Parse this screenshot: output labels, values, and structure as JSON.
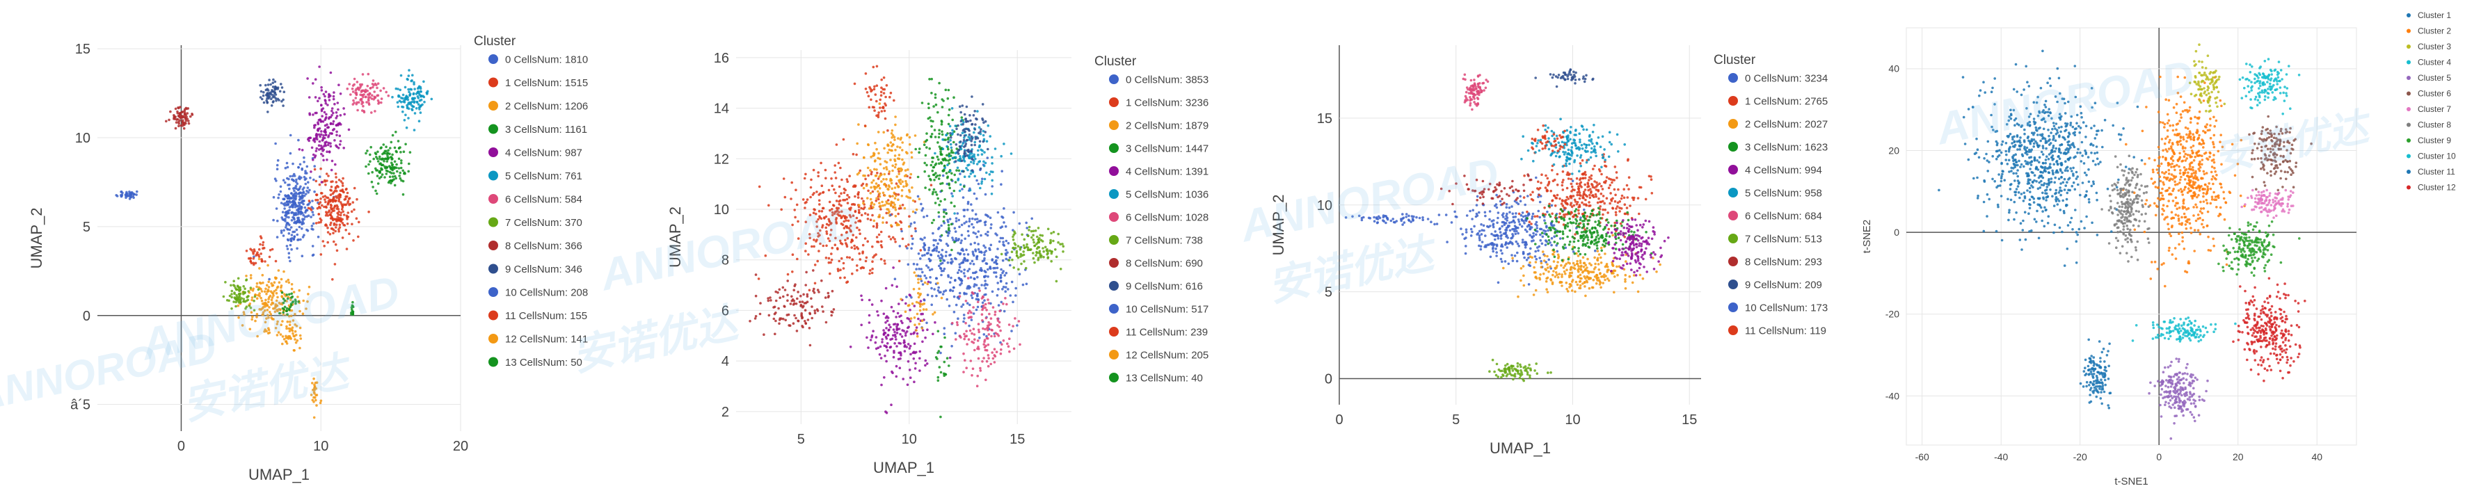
{
  "watermark": {
    "brand": "ANNOROAD",
    "cn": "安诺优达"
  },
  "chart_data": [
    {
      "type": "scatter",
      "xlabel": "UMAP_1",
      "ylabel": "UMAP_2",
      "xlim": [
        -6,
        20
      ],
      "ylim": [
        -6.5,
        15.2
      ],
      "xticks": [
        0,
        10,
        20
      ],
      "yticks": [
        -5,
        0,
        5,
        10,
        15
      ],
      "ytick_labels": [
        "â´5",
        "0",
        "5",
        "10",
        "15"
      ],
      "grid": true,
      "legend_placement": "right",
      "legend_title": "Cluster",
      "legend": [
        "0 CellsNum: 1810",
        "1 CellsNum: 1515",
        "2 CellsNum: 1206",
        "3 CellsNum: 1161",
        "4 CellsNum: 987",
        "5 CellsNum: 761",
        "6 CellsNum: 584",
        "7 CellsNum: 370",
        "8 CellsNum: 366",
        "9 CellsNum: 346",
        "10 CellsNum: 208",
        "11 CellsNum: 155",
        "12 CellsNum: 141",
        "13 CellsNum: 50"
      ],
      "colors": [
        "#3d63c9",
        "#dc3b1c",
        "#f39914",
        "#14931f",
        "#910f9a",
        "#0b97c2",
        "#de4879",
        "#66a815",
        "#b02d2d",
        "#2f4f8e",
        "#3d63c9",
        "#dc3b1c",
        "#f39914",
        "#14931f"
      ]
    },
    {
      "type": "scatter",
      "xlabel": "UMAP_1",
      "ylabel": "UMAP_2",
      "xlim": [
        2,
        17.5
      ],
      "ylim": [
        1.5,
        16.3
      ],
      "xticks": [
        5,
        10,
        15
      ],
      "yticks": [
        2,
        4,
        6,
        8,
        10,
        12,
        14,
        16
      ],
      "grid": true,
      "legend_placement": "right",
      "legend_title": "Cluster",
      "legend": [
        "0 CellsNum: 3853",
        "1 CellsNum: 3236",
        "2 CellsNum: 1879",
        "3 CellsNum: 1447",
        "4 CellsNum: 1391",
        "5 CellsNum: 1036",
        "6 CellsNum: 1028",
        "7 CellsNum: 738",
        "8 CellsNum: 690",
        "9 CellsNum: 616",
        "10 CellsNum: 517",
        "11 CellsNum: 239",
        "12 CellsNum: 205",
        "13 CellsNum: 40"
      ],
      "colors": [
        "#3d63c9",
        "#dc3b1c",
        "#f39914",
        "#14931f",
        "#910f9a",
        "#0b97c2",
        "#de4879",
        "#66a815",
        "#b02d2d",
        "#2f4f8e",
        "#3d63c9",
        "#dc3b1c",
        "#f39914",
        "#14931f"
      ]
    },
    {
      "type": "scatter",
      "xlabel": "UMAP_1",
      "ylabel": "UMAP_2",
      "xlim": [
        0,
        15.5
      ],
      "ylim": [
        -1.5,
        19.2
      ],
      "xticks": [
        0,
        5,
        10,
        15
      ],
      "yticks": [
        0,
        5,
        10,
        15
      ],
      "grid": true,
      "legend_placement": "right",
      "legend_title": "Cluster",
      "legend": [
        "0 CellsNum: 3234",
        "1 CellsNum: 2765",
        "2 CellsNum: 2027",
        "3 CellsNum: 1623",
        "4 CellsNum: 994",
        "5 CellsNum: 958",
        "6 CellsNum: 684",
        "7 CellsNum: 513",
        "8 CellsNum: 293",
        "9 CellsNum: 209",
        "10 CellsNum: 173",
        "11 CellsNum: 119"
      ],
      "colors": [
        "#3d63c9",
        "#dc3b1c",
        "#f39914",
        "#14931f",
        "#910f9a",
        "#0b97c2",
        "#de4879",
        "#66a815",
        "#b02d2d",
        "#2f4f8e",
        "#3d63c9",
        "#dc3b1c"
      ]
    },
    {
      "type": "scatter",
      "xlabel": "t-SNE1",
      "ylabel": "t-SNE2",
      "xlim": [
        -64,
        50
      ],
      "ylim": [
        -52,
        50
      ],
      "xticks": [
        -60,
        -40,
        -20,
        0,
        20,
        40
      ],
      "yticks": [
        -40,
        -20,
        0,
        20,
        40
      ],
      "grid": true,
      "legend_placement": "right",
      "legend_title": "",
      "legend": [
        "Cluster 1",
        "Cluster 2",
        "Cluster 3",
        "Cluster 4",
        "Cluster 5",
        "Cluster 6",
        "Cluster 7",
        "Cluster 8",
        "Cluster 9",
        "Cluster 10",
        "Cluster 11",
        "Cluster 12"
      ],
      "colors": [
        "#1f77b4",
        "#ff7f0e",
        "#bcbd22",
        "#17becf",
        "#9467bd",
        "#8c564b",
        "#e377c2",
        "#7f7f7f",
        "#2ca02c",
        "#17becf",
        "#1f77b4",
        "#d62728"
      ]
    }
  ]
}
